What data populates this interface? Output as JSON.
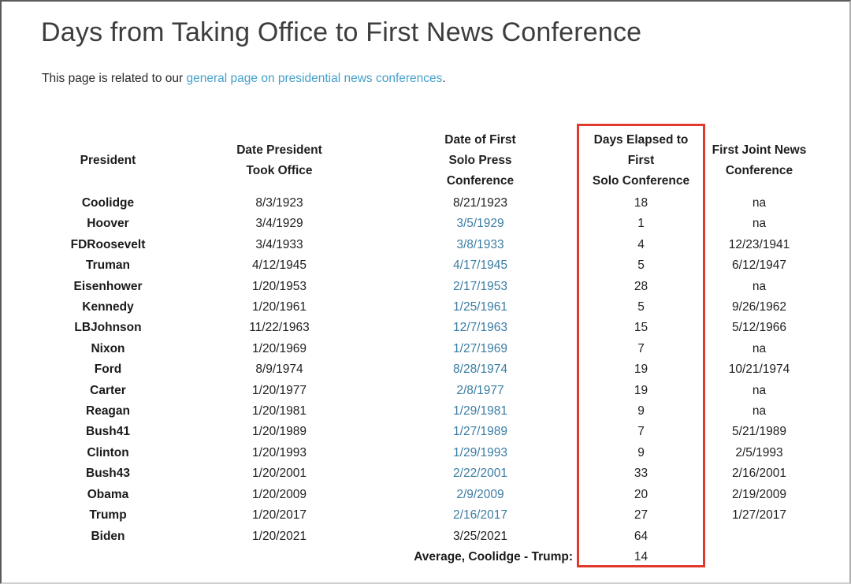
{
  "page": {
    "title": "Days from Taking Office to First News Conference",
    "intro_prefix": "This page is related to our ",
    "intro_link": "general page on presidential news conferences",
    "intro_suffix": "."
  },
  "colors": {
    "highlight_box_red": "#e0392e",
    "intro_link_blue": "#459fcb",
    "table_link_blue": "#3a7ca3"
  },
  "table": {
    "headers": [
      "President",
      "Date President\nTook Office",
      "Date of First\nSolo Press\nConference",
      "Days Elapsed to\nFirst\nSolo Conference",
      "First Joint News\nConference"
    ],
    "rows": [
      {
        "president": "Coolidge",
        "took_office": "8/3/1923",
        "first_solo": "8/21/1923",
        "first_solo_is_link": false,
        "days": 18,
        "first_joint": "na"
      },
      {
        "president": "Hoover",
        "took_office": "3/4/1929",
        "first_solo": "3/5/1929",
        "first_solo_is_link": true,
        "days": 1,
        "first_joint": "na"
      },
      {
        "president": "FDRoosevelt",
        "took_office": "3/4/1933",
        "first_solo": "3/8/1933",
        "first_solo_is_link": true,
        "days": 4,
        "first_joint": "12/23/1941"
      },
      {
        "president": "Truman",
        "took_office": "4/12/1945",
        "first_solo": "4/17/1945",
        "first_solo_is_link": true,
        "days": 5,
        "first_joint": "6/12/1947"
      },
      {
        "president": "Eisenhower",
        "took_office": "1/20/1953",
        "first_solo": "2/17/1953",
        "first_solo_is_link": true,
        "days": 28,
        "first_joint": "na"
      },
      {
        "president": "Kennedy",
        "took_office": "1/20/1961",
        "first_solo": "1/25/1961",
        "first_solo_is_link": true,
        "days": 5,
        "first_joint": "9/26/1962"
      },
      {
        "president": "LBJohnson",
        "took_office": "11/22/1963",
        "first_solo": "12/7/1963",
        "first_solo_is_link": true,
        "days": 15,
        "first_joint": "5/12/1966"
      },
      {
        "president": "Nixon",
        "took_office": "1/20/1969",
        "first_solo": "1/27/1969",
        "first_solo_is_link": true,
        "days": 7,
        "first_joint": "na"
      },
      {
        "president": "Ford",
        "took_office": "8/9/1974",
        "first_solo": "8/28/1974",
        "first_solo_is_link": true,
        "days": 19,
        "first_joint": "10/21/1974"
      },
      {
        "president": "Carter",
        "took_office": "1/20/1977",
        "first_solo": "2/8/1977",
        "first_solo_is_link": true,
        "days": 19,
        "first_joint": "na"
      },
      {
        "president": "Reagan",
        "took_office": "1/20/1981",
        "first_solo": "1/29/1981",
        "first_solo_is_link": true,
        "days": 9,
        "first_joint": "na"
      },
      {
        "president": "Bush41",
        "took_office": "1/20/1989",
        "first_solo": "1/27/1989",
        "first_solo_is_link": true,
        "days": 7,
        "first_joint": "5/21/1989"
      },
      {
        "president": "Clinton",
        "took_office": "1/20/1993",
        "first_solo": "1/29/1993",
        "first_solo_is_link": true,
        "days": 9,
        "first_joint": "2/5/1993"
      },
      {
        "president": "Bush43",
        "took_office": "1/20/2001",
        "first_solo": "2/22/2001",
        "first_solo_is_link": true,
        "days": 33,
        "first_joint": "2/16/2001"
      },
      {
        "president": "Obama",
        "took_office": "1/20/2009",
        "first_solo": "2/9/2009",
        "first_solo_is_link": true,
        "days": 20,
        "first_joint": "2/19/2009"
      },
      {
        "president": "Trump",
        "took_office": "1/20/2017",
        "first_solo": "2/16/2017",
        "first_solo_is_link": true,
        "days": 27,
        "first_joint": "1/27/2017"
      },
      {
        "president": "Biden",
        "took_office": "1/20/2021",
        "first_solo": "3/25/2021",
        "first_solo_is_link": false,
        "days": 64,
        "first_joint": ""
      }
    ],
    "footer": {
      "label": "Average, Coolidge - Trump:",
      "days": 14
    }
  }
}
